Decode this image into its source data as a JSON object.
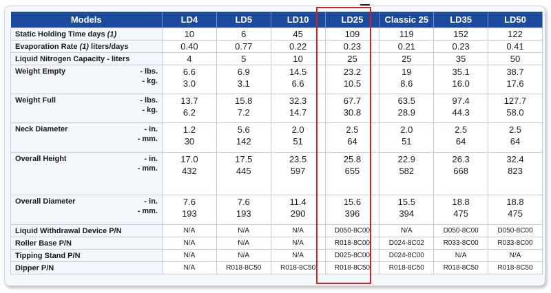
{
  "header": {
    "label": "Models",
    "models": [
      "LD4",
      "LD5",
      "LD10",
      "LD25",
      "Classic 25",
      "LD35",
      "LD50"
    ]
  },
  "rows": [
    {
      "label": "Static Holding Time days",
      "note": "(1)",
      "units": [],
      "values": [
        [
          "10"
        ],
        [
          "6"
        ],
        [
          "45"
        ],
        [
          "109"
        ],
        [
          "119"
        ],
        [
          "152"
        ],
        [
          "122"
        ]
      ],
      "height": 18
    },
    {
      "label": "Evaporation Rate",
      "note": "(1)",
      "suffix": " liters/days",
      "units": [],
      "values": [
        [
          "0.40"
        ],
        [
          "0.77"
        ],
        [
          "0.22"
        ],
        [
          "0.23"
        ],
        [
          "0.21"
        ],
        [
          "0.23"
        ],
        [
          "0.41"
        ]
      ],
      "height": 18
    },
    {
      "label": "Liquid Nitrogen Capacity - liters",
      "units": [],
      "values": [
        [
          "4"
        ],
        [
          "5"
        ],
        [
          "10"
        ],
        [
          "25"
        ],
        [
          "25"
        ],
        [
          "35"
        ],
        [
          "50"
        ]
      ],
      "height": 18
    },
    {
      "label": "Weight Empty",
      "units": [
        "- lbs.",
        "- kg."
      ],
      "values": [
        [
          "6.6",
          "3.0"
        ],
        [
          "6.9",
          "3.1"
        ],
        [
          "14.5",
          "6.6"
        ],
        [
          "23.2",
          "10.5"
        ],
        [
          "19",
          "8.6"
        ],
        [
          "35.1",
          "16.0"
        ],
        [
          "38.7",
          "17.6"
        ]
      ],
      "height": 42
    },
    {
      "label": "Weight Full",
      "units": [
        "- lbs.",
        "- kg."
      ],
      "values": [
        [
          "13.7",
          "6.2"
        ],
        [
          "15.8",
          "7.2"
        ],
        [
          "32.3",
          "14.7"
        ],
        [
          "67.7",
          "30.8"
        ],
        [
          "63.5",
          "28.9"
        ],
        [
          "97.4",
          "44.3"
        ],
        [
          "127.7",
          "58.0"
        ]
      ],
      "height": 42
    },
    {
      "label": "Neck Diameter",
      "units": [
        "- in.",
        "- mm."
      ],
      "values": [
        [
          "1.2",
          "30"
        ],
        [
          "5.6",
          "142"
        ],
        [
          "2.0",
          "51"
        ],
        [
          "2.5",
          "64"
        ],
        [
          "2.0",
          "51"
        ],
        [
          "2.5",
          "64"
        ],
        [
          "2.5",
          "64"
        ]
      ],
      "height": 43
    },
    {
      "label": "Overall Height",
      "units": [
        "- in.",
        "- mm."
      ],
      "values": [
        [
          "17.0",
          "432"
        ],
        [
          "17.5",
          "445"
        ],
        [
          "23.5",
          "597"
        ],
        [
          "25.8",
          "655"
        ],
        [
          "22.9",
          "582"
        ],
        [
          "26.3",
          "668"
        ],
        [
          "32.4",
          "823"
        ]
      ],
      "height": 62
    },
    {
      "label": "Overall Diameter",
      "units": [
        "- in.",
        "- mm."
      ],
      "values": [
        [
          "7.6",
          "193"
        ],
        [
          "7.6",
          "193"
        ],
        [
          "11.4",
          "290"
        ],
        [
          "15.6",
          "396"
        ],
        [
          "15.5",
          "394"
        ],
        [
          "18.8",
          "475"
        ],
        [
          "18.8",
          "475"
        ]
      ],
      "height": 43
    },
    {
      "label": "Liquid Withdrawal Device  P/N",
      "units": [],
      "small": true,
      "values": [
        [
          "N/A"
        ],
        [
          "N/A"
        ],
        [
          "N/A"
        ],
        [
          "D050-8C00"
        ],
        [
          "N/A"
        ],
        [
          "D050-8C00"
        ],
        [
          "D050-8C00"
        ]
      ],
      "height": 18
    },
    {
      "label": "Roller Base   P/N",
      "units": [],
      "small": true,
      "values": [
        [
          "N/A"
        ],
        [
          "N/A"
        ],
        [
          "N/A"
        ],
        [
          "R018-8C00"
        ],
        [
          "D024-8C02"
        ],
        [
          "R033-8C00"
        ],
        [
          "R033-8C00"
        ]
      ],
      "height": 18
    },
    {
      "label": "Tipping Stand   P/N",
      "units": [],
      "small": true,
      "values": [
        [
          "N/A"
        ],
        [
          "N/A"
        ],
        [
          "N/A"
        ],
        [
          "D025-8C00"
        ],
        [
          "D024-8C00"
        ],
        [
          "N/A"
        ],
        [
          "N/A"
        ]
      ],
      "height": 18
    },
    {
      "label": "Dipper   P/N",
      "units": [],
      "small": true,
      "values": [
        [
          "N/A"
        ],
        [
          "R018-8C50"
        ],
        [
          "R018-8C50"
        ],
        [
          "R018-8C50"
        ],
        [
          "R018-8C50"
        ],
        [
          "R018-8C50"
        ],
        [
          "R018-8C50"
        ]
      ],
      "height": 18
    }
  ],
  "highlight": {
    "model": "LD25",
    "color": "#d62020"
  }
}
